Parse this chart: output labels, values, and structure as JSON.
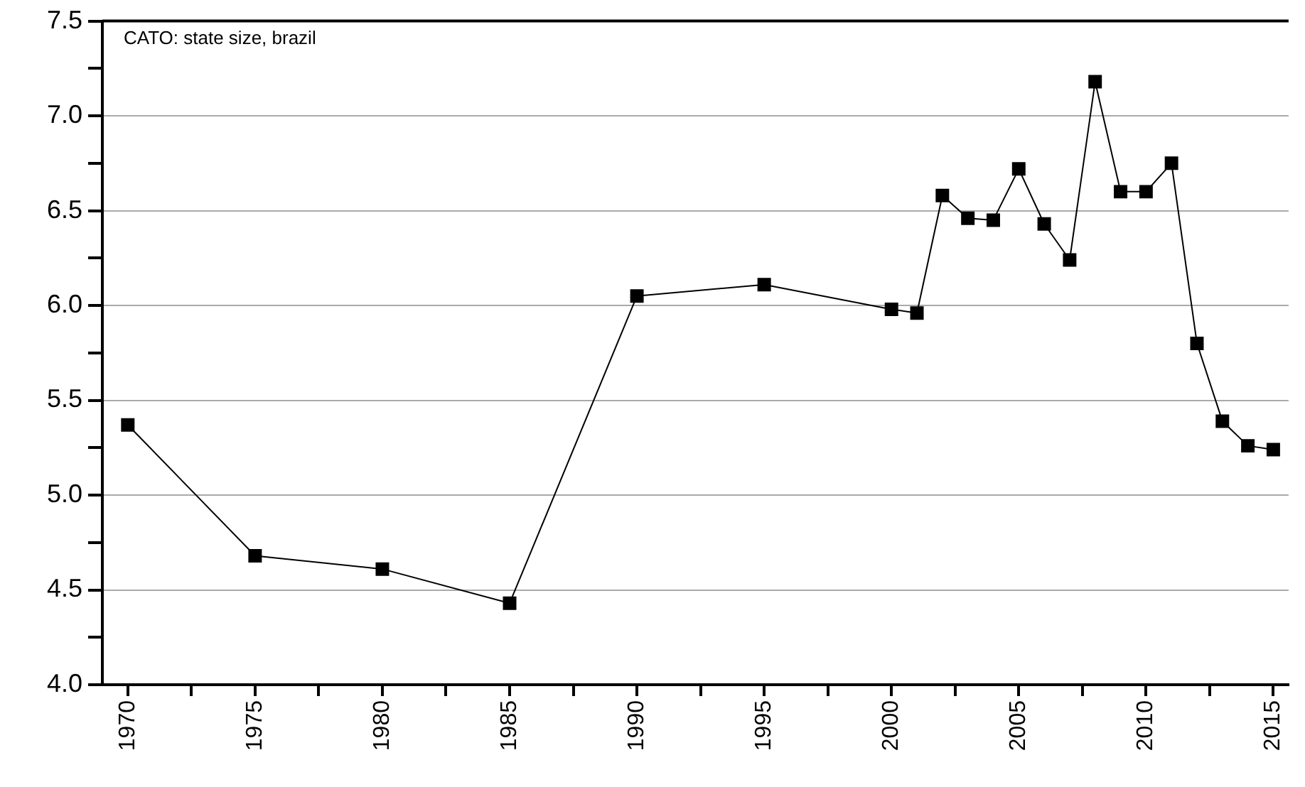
{
  "chart_data": {
    "type": "line",
    "title": "CATO: state size, brazil",
    "x": [
      1970,
      1975,
      1980,
      1985,
      1990,
      1995,
      2000,
      2001,
      2002,
      2003,
      2004,
      2005,
      2006,
      2007,
      2008,
      2009,
      2010,
      2011,
      2012,
      2013,
      2014,
      2015
    ],
    "series": [
      {
        "color": "#000000",
        "values": [
          5.37,
          4.68,
          4.61,
          4.43,
          6.05,
          6.11,
          5.98,
          5.96,
          6.58,
          6.46,
          6.45,
          6.72,
          6.43,
          6.24,
          7.18,
          6.6,
          6.6,
          6.75,
          5.8,
          5.39,
          5.26,
          5.24
        ]
      }
    ],
    "xlim": [
      1969,
      2015.6
    ],
    "xticks": [
      1970,
      {
        "value": 1972.5,
        "label": null
      },
      1975,
      {
        "value": 1977.5,
        "label": null
      },
      1980,
      {
        "value": 1982.5,
        "label": null
      },
      1985,
      {
        "value": 1987.5,
        "label": null
      },
      1990,
      {
        "value": 1992.5,
        "label": null
      },
      1995,
      {
        "value": 1997.5,
        "label": null
      },
      2000,
      {
        "value": 2002.5,
        "label": null
      },
      2005,
      {
        "value": 2007.5,
        "label": null
      },
      2010,
      {
        "value": 2012.5,
        "label": null
      },
      2015
    ],
    "ylim": [
      4.0,
      7.5
    ],
    "yticks": [
      {
        "value": 4.0,
        "label": "4.0"
      },
      {
        "value": 4.25,
        "label": null
      },
      {
        "value": 4.5,
        "label": "4.5"
      },
      {
        "value": 4.75,
        "label": null
      },
      {
        "value": 5.0,
        "label": "5.0"
      },
      {
        "value": 5.25,
        "label": null
      },
      {
        "value": 5.5,
        "label": "5.5"
      },
      {
        "value": 5.75,
        "label": null
      },
      {
        "value": 6.0,
        "label": "6.0"
      },
      {
        "value": 6.25,
        "label": null
      },
      {
        "value": 6.5,
        "label": "6.5"
      },
      {
        "value": 6.75,
        "label": null
      },
      {
        "value": 7.0,
        "label": "7.0"
      },
      {
        "value": 7.25,
        "label": null
      },
      {
        "value": 7.5,
        "label": "7.5"
      }
    ],
    "grid": "y",
    "legend": false,
    "marker": "square",
    "line_style": "solid"
  }
}
